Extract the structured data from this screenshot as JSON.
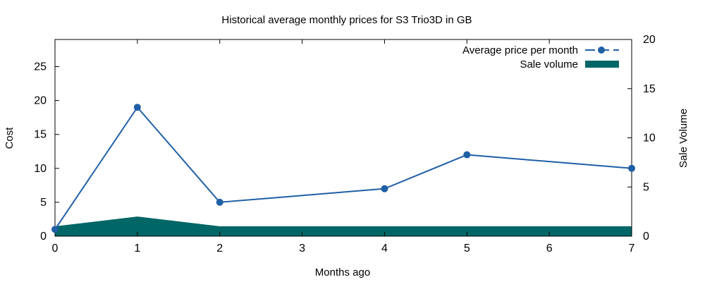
{
  "chart_data": {
    "type": "line",
    "title": "Historical average monthly prices for S3 Trio3D in GB",
    "xlabel": "Months ago",
    "ylabel": "Cost",
    "y2label": "Sale Volume",
    "xlim": [
      0,
      7
    ],
    "ylim": [
      0,
      29
    ],
    "y2lim": [
      0,
      20
    ],
    "x_ticks": [
      0,
      1,
      2,
      3,
      4,
      5,
      6,
      7
    ],
    "y_ticks": [
      0,
      5,
      10,
      15,
      20,
      25
    ],
    "y2_ticks": [
      0,
      5,
      10,
      15,
      20
    ],
    "legend_position": "top-right",
    "grid": false,
    "series": [
      {
        "name": "Average price per month",
        "kind": "line",
        "axis": "y",
        "color": "#1f5fa6",
        "x": [
          0,
          1,
          2,
          4,
          5,
          7
        ],
        "values": [
          1,
          19,
          5,
          7,
          12,
          10
        ]
      },
      {
        "name": "Sale volume",
        "kind": "area",
        "axis": "y2",
        "color": "#006666",
        "x": [
          0,
          1,
          2,
          3,
          4,
          5,
          6,
          7
        ],
        "values": [
          1,
          2,
          1,
          1,
          1,
          1,
          1,
          1
        ]
      }
    ]
  }
}
